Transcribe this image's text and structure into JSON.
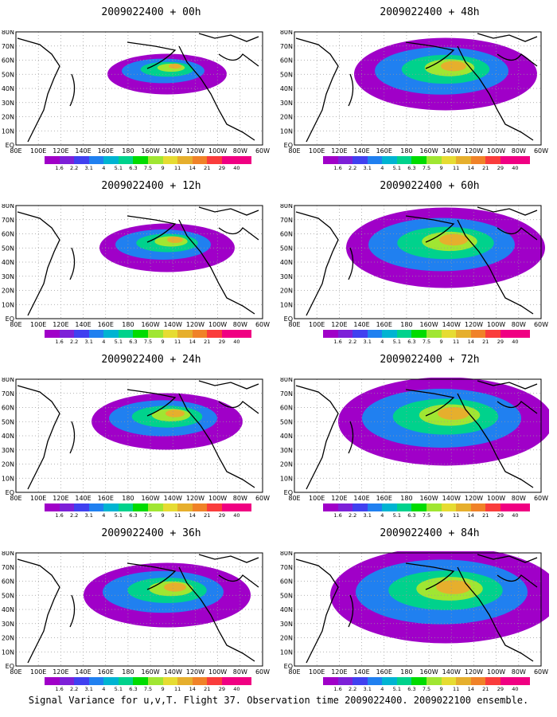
{
  "caption": "Signal Variance for u,v,T. Flight 37. Observation time 2009022400. 2009022100 ensemble.",
  "panels": [
    {
      "title": "2009022400 + 00h",
      "intensity": 0.15
    },
    {
      "title": "2009022400 + 48h",
      "intensity": 0.55
    },
    {
      "title": "2009022400 + 12h",
      "intensity": 0.25
    },
    {
      "title": "2009022400 + 60h",
      "intensity": 0.65
    },
    {
      "title": "2009022400 + 24h",
      "intensity": 0.35
    },
    {
      "title": "2009022400 + 72h",
      "intensity": 0.75
    },
    {
      "title": "2009022400 + 36h",
      "intensity": 0.45
    },
    {
      "title": "2009022400 + 84h",
      "intensity": 0.85
    }
  ],
  "chart_data": {
    "type": "heatmap",
    "xlabels": [
      "80E",
      "100E",
      "120E",
      "140E",
      "160E",
      "180",
      "160W",
      "140W",
      "120W",
      "100W",
      "80W",
      "60W"
    ],
    "ylabels": [
      "EQ",
      "10N",
      "20N",
      "30N",
      "40N",
      "50N",
      "60N",
      "70N",
      "80N"
    ],
    "legend": {
      "levels": [
        "1.6",
        "2.2",
        "3.1",
        "4",
        "5.1",
        "6.3",
        "7.5",
        "9",
        "11",
        "14",
        "21",
        "29",
        "40"
      ],
      "colors": [
        "#a000c8",
        "#7d20d8",
        "#4040f0",
        "#2080f0",
        "#00b4d2",
        "#00d28c",
        "#00dc00",
        "#a0e632",
        "#e6dc32",
        "#e6af2d",
        "#f08228",
        "#fa3c3c",
        "#f00082"
      ]
    },
    "series_note": "Lead times: 00h, 12h, 24h, 36h, 48h, 60h, 72h, 84h"
  }
}
